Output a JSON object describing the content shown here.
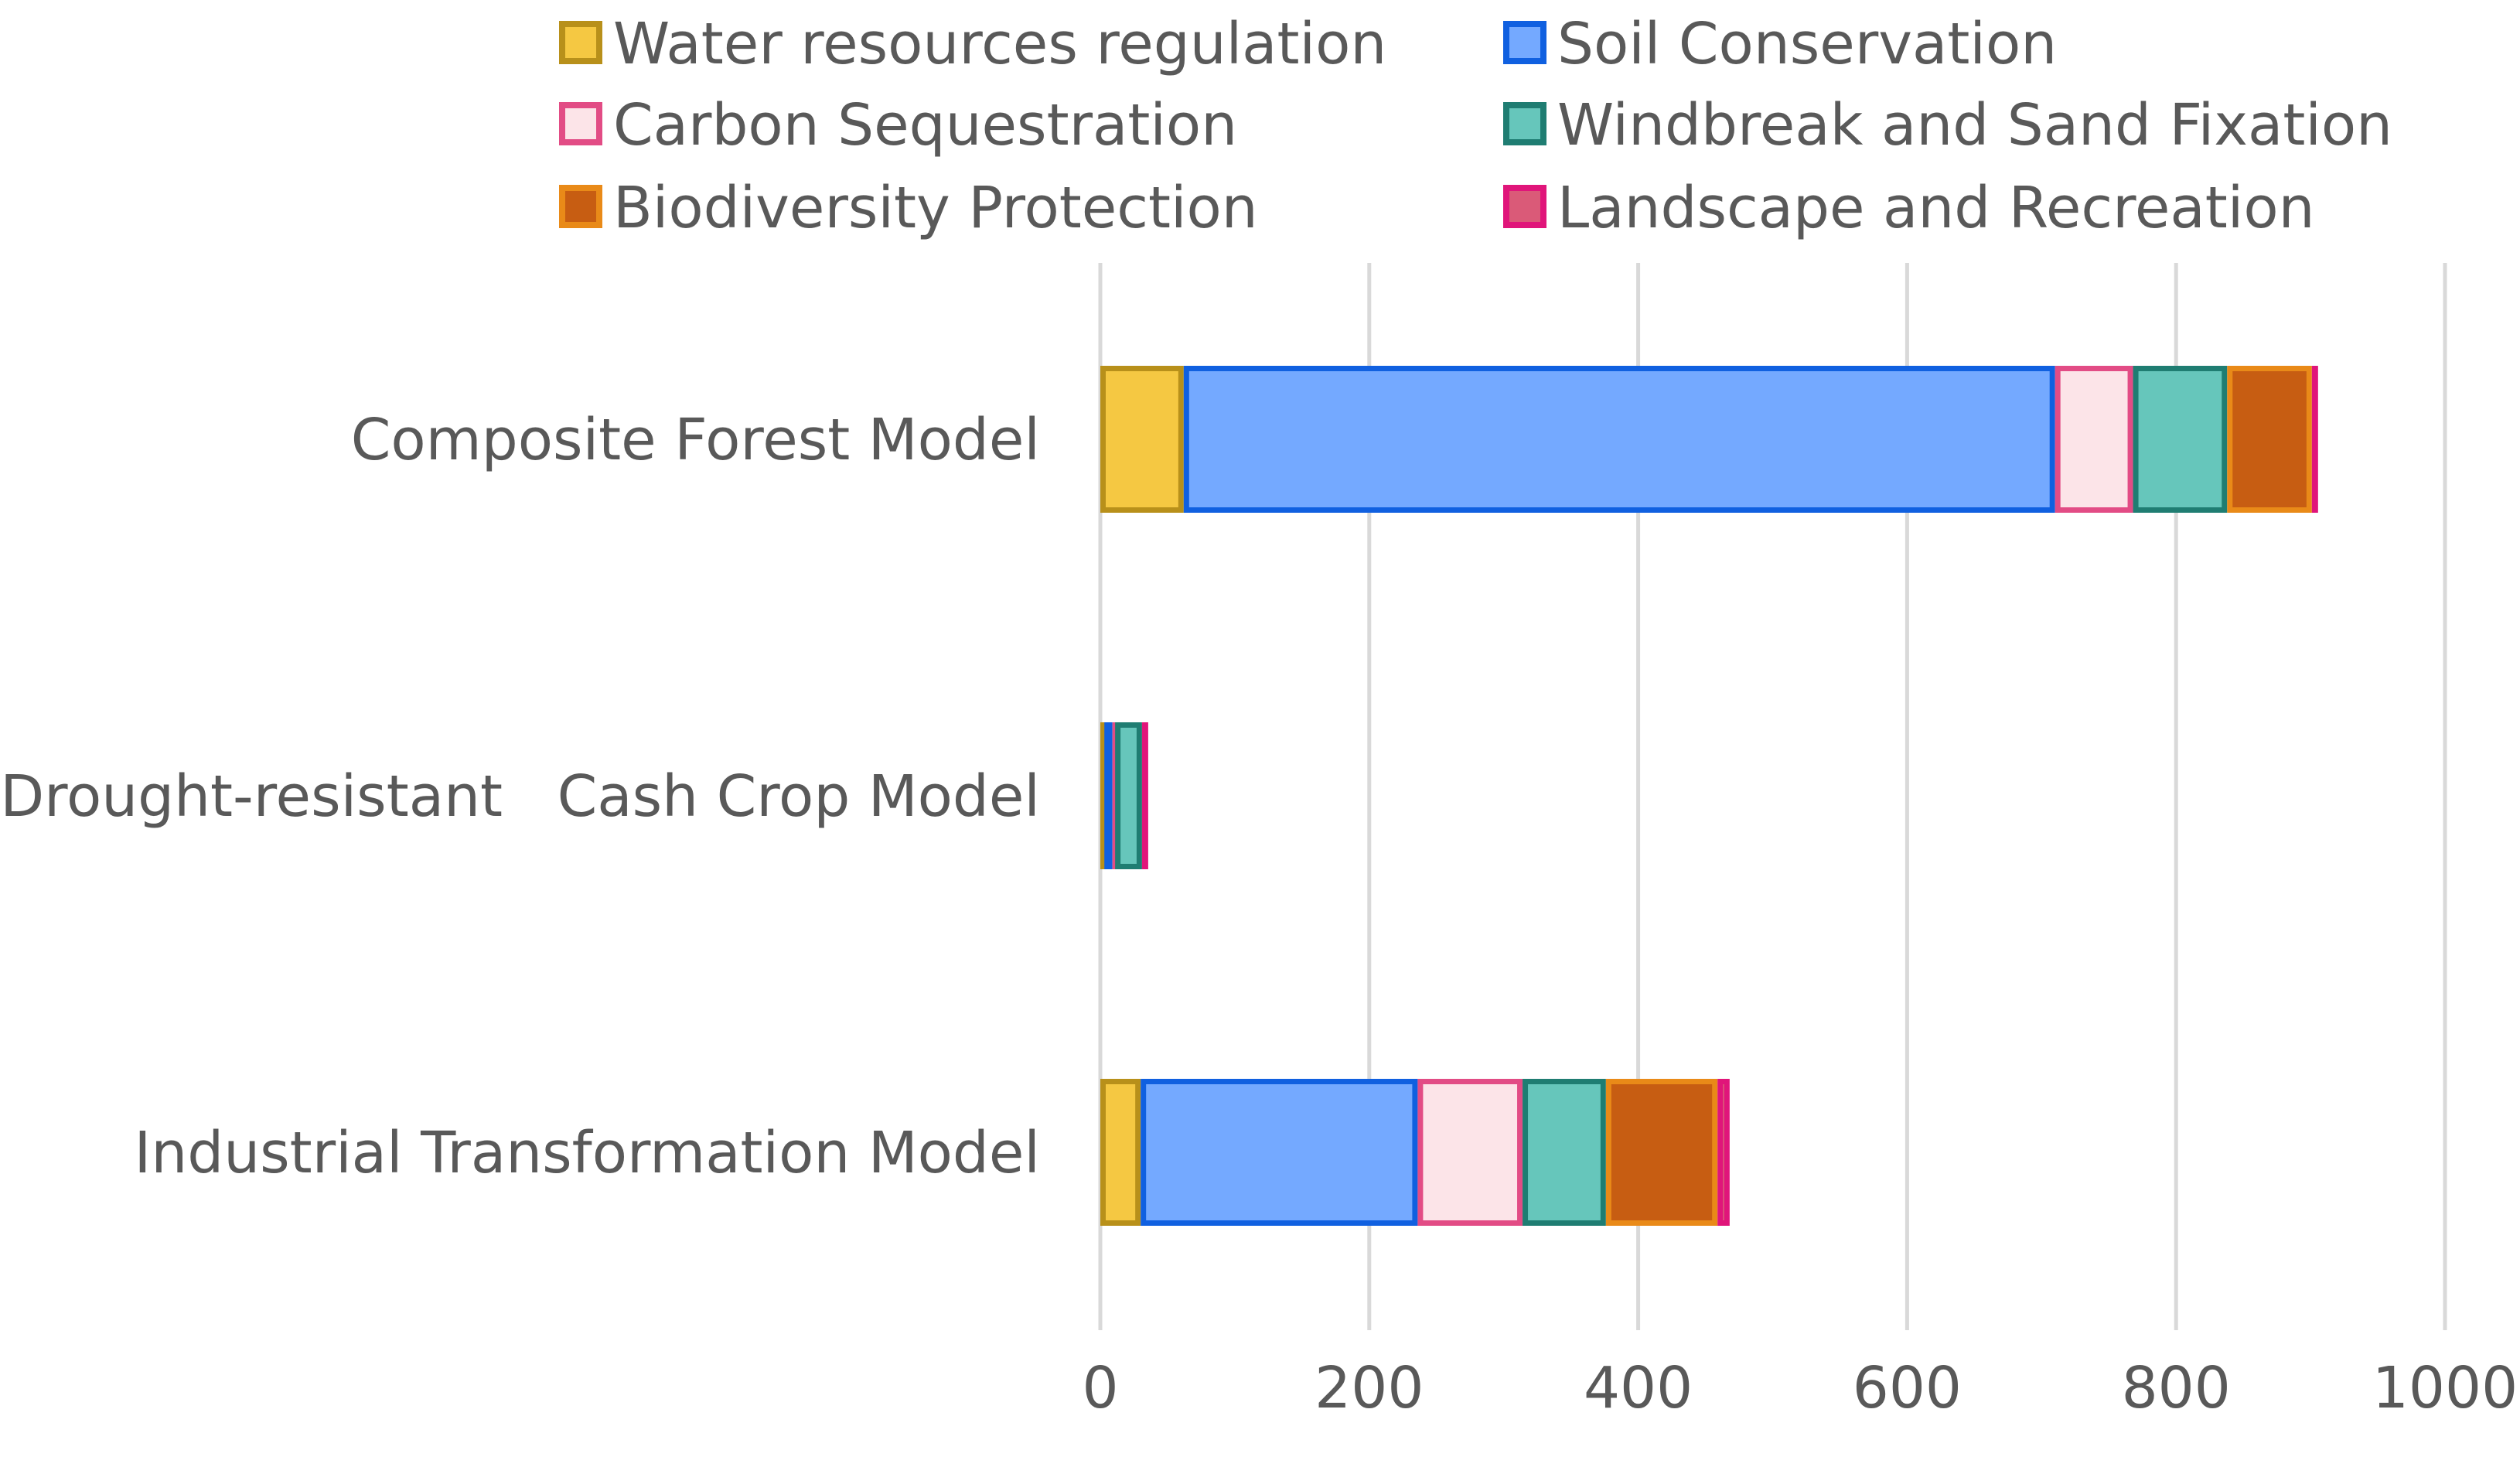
{
  "chart_data": {
    "type": "bar",
    "orientation": "horizontal",
    "stacked": true,
    "title": "",
    "xlabel": "",
    "ylabel": "",
    "xlim": [
      0,
      1000
    ],
    "xticks": [
      0,
      200,
      400,
      600,
      800,
      1000
    ],
    "grid": true,
    "legend_position": "top",
    "categories": [
      "Composite Forest Model",
      "Drought-resistant   Cash Crop Model",
      "Industrial Transformation Model"
    ],
    "series": [
      {
        "name": "Water resources regulation",
        "fill": "#F5C842",
        "stroke": "#B8901A",
        "values": [
          62,
          3,
          30
        ]
      },
      {
        "name": "Soil Conservation",
        "fill": "#74A9FF",
        "stroke": "#1060E0",
        "values": [
          648,
          6,
          206
        ]
      },
      {
        "name": "Carbon Sequestration",
        "fill": "#FCE4E8",
        "stroke": "#E24C85",
        "values": [
          58,
          2,
          78
        ]
      },
      {
        "name": "Windbreak and Sand Fixation",
        "fill": "#66C6BB",
        "stroke": "#1F7D72",
        "values": [
          70,
          20,
          62
        ]
      },
      {
        "name": "Biodiversity Protection",
        "fill": "#C75D12",
        "stroke": "#E98A18",
        "values": [
          63,
          0,
          83
        ]
      },
      {
        "name": "Landscape and Recreation",
        "fill": "#DA5A78",
        "stroke": "#E0157A",
        "values": [
          4,
          4,
          9
        ]
      }
    ]
  }
}
